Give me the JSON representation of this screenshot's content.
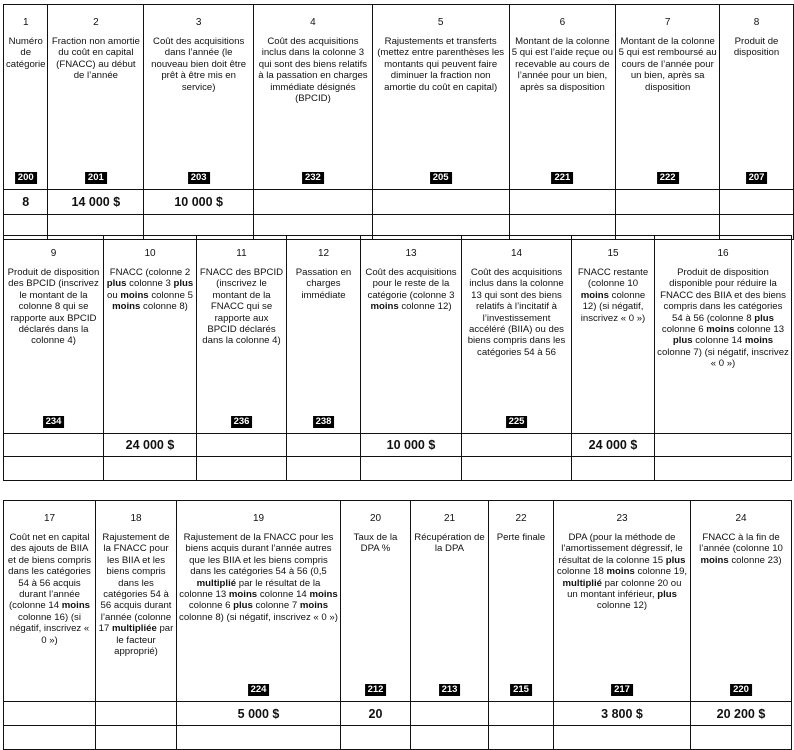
{
  "tables": [
    {
      "columns": [
        {
          "num": "1",
          "desc": [
            {
              "t": "Numéro de catégorie"
            }
          ],
          "code": "200",
          "value": "8"
        },
        {
          "num": "2",
          "desc": [
            {
              "t": "Fraction non amortie du coût en capital (FNACC) au début de l’année"
            }
          ],
          "code": "201",
          "value": "14 000 $"
        },
        {
          "num": "3",
          "desc": [
            {
              "t": "Coût des acquisitions dans l’année (le nouveau bien doit être prêt à être mis en service)"
            }
          ],
          "code": "203",
          "value": "10 000 $"
        },
        {
          "num": "4",
          "desc": [
            {
              "t": "Coût des acquisitions inclus dans la colonne 3 qui sont des biens relatifs à la passation en charges immédiate désignés (BPCID)"
            }
          ],
          "code": "232",
          "value": ""
        },
        {
          "num": "5",
          "desc": [
            {
              "t": "Rajustements et transferts (mettez entre parenthèses les montants qui peuvent faire diminuer la fraction non amortie du coût en capital)"
            }
          ],
          "code": "205",
          "value": ""
        },
        {
          "num": "6",
          "desc": [
            {
              "t": "Montant de la colonne 5 qui est l’aide reçue ou recevable au cours de l’année pour un bien, après sa disposition"
            }
          ],
          "code": "221",
          "value": ""
        },
        {
          "num": "7",
          "desc": [
            {
              "t": "Montant de la colonne 5 qui est remboursé au cours de l’année pour un bien, après sa disposition"
            }
          ],
          "code": "222",
          "value": ""
        },
        {
          "num": "8",
          "desc": [
            {
              "t": "Produit de disposition"
            }
          ],
          "code": "207",
          "value": ""
        }
      ]
    },
    {
      "columns": [
        {
          "num": "9",
          "desc": [
            {
              "t": "Produit de disposition des BPCID (inscrivez le montant de la colonne 8 qui se rapporte aux BPCID déclarés dans la colonne 4)"
            }
          ],
          "code": "234",
          "value": ""
        },
        {
          "num": "10",
          "desc": [
            {
              "t": "FNACC (colonne 2 "
            },
            {
              "t": "plus",
              "b": true
            },
            {
              "t": " colonne 3 "
            },
            {
              "t": "plus",
              "b": true
            },
            {
              "t": " ou "
            },
            {
              "t": "moins",
              "b": true
            },
            {
              "t": " colonne 5 "
            },
            {
              "t": "moins",
              "b": true
            },
            {
              "t": " colonne 8)"
            }
          ],
          "code": "",
          "value": "24 000 $"
        },
        {
          "num": "11",
          "desc": [
            {
              "t": "FNACC des BPCID (inscrivez le montant de la FNACC qui se rapporte aux BPCID déclarés dans la colonne 4)"
            }
          ],
          "code": "236",
          "value": ""
        },
        {
          "num": "12",
          "desc": [
            {
              "t": "Passation en charges immédiate"
            }
          ],
          "code": "238",
          "value": ""
        },
        {
          "num": "13",
          "desc": [
            {
              "t": "Coût des acquisitions pour le reste de la catégorie (colonne 3 "
            },
            {
              "t": "moins",
              "b": true
            },
            {
              "t": " colonne 12)"
            }
          ],
          "code": "",
          "value": "10 000 $"
        },
        {
          "num": "14",
          "desc": [
            {
              "t": "Coût des acquisitions inclus dans la colonne 13 qui sont des biens relatifs à l’incitatif à l’investissement accéléré (BIIA) ou des biens compris dans les catégories 54 à 56"
            }
          ],
          "code": "225",
          "value": ""
        },
        {
          "num": "15",
          "desc": [
            {
              "t": "FNACC restante (colonne 10 "
            },
            {
              "t": "moins",
              "b": true
            },
            {
              "t": " colonne 12) (si négatif, inscrivez « 0 »)"
            }
          ],
          "code": "",
          "value": "24 000 $"
        },
        {
          "num": "16",
          "desc": [
            {
              "t": "Produit de disposition disponible pour réduire la FNACC des BIIA et des biens compris dans les catégories 54 à 56 (colonne 8 "
            },
            {
              "t": "plus",
              "b": true
            },
            {
              "t": " colonne 6 "
            },
            {
              "t": "moins",
              "b": true
            },
            {
              "t": " colonne 13 "
            },
            {
              "t": "plus",
              "b": true
            },
            {
              "t": " colonne 14 "
            },
            {
              "t": "moins",
              "b": true
            },
            {
              "t": " colonne 7) (si négatif, inscrivez « 0 »)"
            }
          ],
          "code": "",
          "value": ""
        }
      ]
    },
    {
      "columns": [
        {
          "num": "17",
          "desc": [
            {
              "t": "Coût net en capital des ajouts de BIIA et de biens compris dans les catégories 54 à 56 acquis durant l’année (colonne 14 "
            },
            {
              "t": "moins",
              "b": true
            },
            {
              "t": " colonne 16) (si négatif, inscrivez « 0 »)"
            }
          ],
          "code": "",
          "value": ""
        },
        {
          "num": "18",
          "desc": [
            {
              "t": "Rajustement de la FNACC pour les BIIA et les biens compris dans les catégories 54 à 56 acquis durant l’année (colonne 17 "
            },
            {
              "t": "multipliée",
              "b": true
            },
            {
              "t": " par le facteur approprié)"
            }
          ],
          "code": "",
          "value": ""
        },
        {
          "num": "19",
          "desc": [
            {
              "t": "Rajustement de la FNACC pour les biens acquis durant l’année autres que les BIIA et les biens compris dans les catégories 54 à 56 (0,5 "
            },
            {
              "t": "multiplié",
              "b": true
            },
            {
              "t": " par le résultat de la colonne 13 "
            },
            {
              "t": "moins",
              "b": true
            },
            {
              "t": " colonne 14 "
            },
            {
              "t": "moins",
              "b": true
            },
            {
              "t": " colonne 6 "
            },
            {
              "t": "plus",
              "b": true
            },
            {
              "t": " colonne 7 "
            },
            {
              "t": "moins",
              "b": true
            },
            {
              "t": " colonne 8) (si négatif, inscrivez « 0 »)"
            }
          ],
          "code": "224",
          "value": "5 000 $"
        },
        {
          "num": "20",
          "desc": [
            {
              "t": "Taux de la DPA %"
            }
          ],
          "code": "212",
          "value": "20"
        },
        {
          "num": "21",
          "desc": [
            {
              "t": "Récupération de la DPA"
            }
          ],
          "code": "213",
          "value": ""
        },
        {
          "num": "22",
          "desc": [
            {
              "t": "Perte finale"
            }
          ],
          "code": "215",
          "value": ""
        },
        {
          "num": "23",
          "desc": [
            {
              "t": "DPA (pour la méthode de l’amortissement dégressif, le résultat de la colonne 15 "
            },
            {
              "t": "plus",
              "b": true
            },
            {
              "t": " colonne 18 "
            },
            {
              "t": "moins",
              "b": true
            },
            {
              "t": " colonne 19, "
            },
            {
              "t": "multiplié",
              "b": true
            },
            {
              "t": " par colonne 20 ou un montant inférieur, "
            },
            {
              "t": "plus",
              "b": true
            },
            {
              "t": " colonne 12)"
            }
          ],
          "code": "217",
          "value": "3 800 $"
        },
        {
          "num": "24",
          "desc": [
            {
              "t": "FNACC à la fin de l’année (colonne 10 "
            },
            {
              "t": "moins",
              "b": true
            },
            {
              "t": " colonne 23)"
            }
          ],
          "code": "220",
          "value": "20 200 $"
        }
      ]
    }
  ]
}
